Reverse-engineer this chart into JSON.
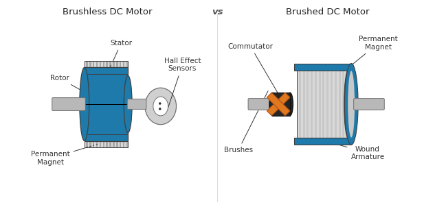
{
  "title_left": "Brushless DC Motor",
  "title_vs": "vs",
  "title_right": "Brushed DC Motor",
  "title_fontsize": 9.5,
  "label_fontsize": 7.5,
  "bg_color": "#ffffff",
  "blue_color": "#1e7aaa",
  "gray_light": "#c8c8c8",
  "gray_med": "#a8a8a8",
  "gray_dark": "#707070",
  "gray_stripe": "#d8d8d8",
  "orange_color": "#e07820",
  "lc": "#404040",
  "shaft_color": "#b8b8b8",
  "comm_color": "#252525",
  "disk_color": "#d0d0d0",
  "label_color": "#333333"
}
